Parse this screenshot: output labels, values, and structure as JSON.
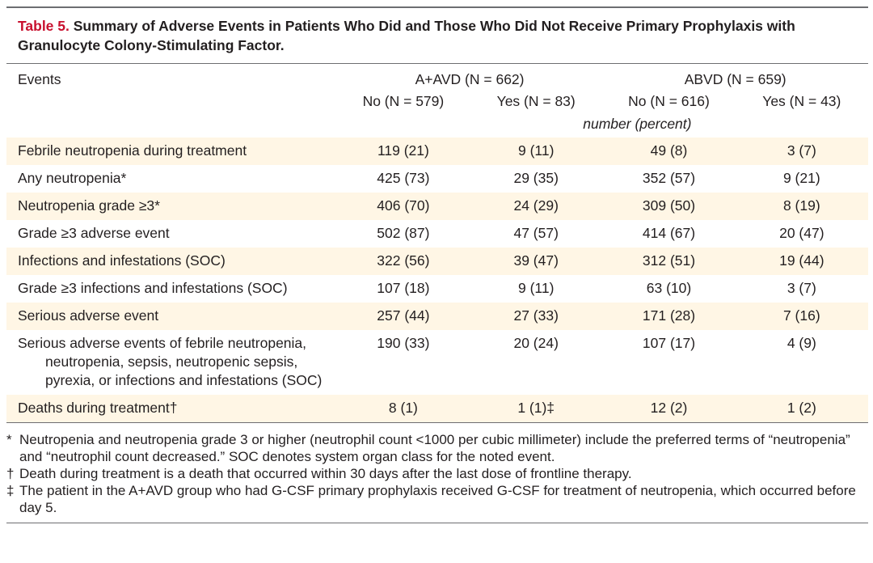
{
  "table": {
    "label": "Table 5.",
    "title": "Summary of Adverse Events in Patients Who Did and Those Who Did Not Receive Primary Prophylaxis with Granulocyte Colony-Stimulating Factor.",
    "events_header": "Events",
    "groups": [
      {
        "label": "A+AVD (N = 662)"
      },
      {
        "label": "ABVD (N = 659)"
      }
    ],
    "subheaders": [
      "No (N = 579)",
      "Yes (N = 83)",
      "No (N = 616)",
      "Yes (N = 43)"
    ],
    "units": "number (percent)",
    "rows": [
      {
        "event": "Febrile neutropenia during treatment",
        "values": [
          "119 (21)",
          "9 (11)",
          "49 (8)",
          "3 (7)"
        ]
      },
      {
        "event": "Any neutropenia*",
        "values": [
          "425 (73)",
          "29 (35)",
          "352 (57)",
          "9 (21)"
        ]
      },
      {
        "event": "Neutropenia grade ≥3*",
        "values": [
          "406 (70)",
          "24 (29)",
          "309 (50)",
          "8 (19)"
        ]
      },
      {
        "event": "Grade ≥3 adverse event",
        "values": [
          "502 (87)",
          "47 (57)",
          "414 (67)",
          "20 (47)"
        ]
      },
      {
        "event": "Infections and infestations (SOC)",
        "values": [
          "322 (56)",
          "39 (47)",
          "312 (51)",
          "19 (44)"
        ]
      },
      {
        "event": "Grade ≥3 infections and infestations (SOC)",
        "values": [
          "107 (18)",
          "9 (11)",
          "63 (10)",
          "3 (7)"
        ]
      },
      {
        "event": "Serious adverse event",
        "values": [
          "257 (44)",
          "27 (33)",
          "171 (28)",
          "7 (16)"
        ]
      },
      {
        "event": "Serious adverse events of febrile neutropenia, neutropenia, sepsis, neutropenic sepsis, pyrexia, or infections and infestations (SOC)",
        "values": [
          "190 (33)",
          "20 (24)",
          "107 (17)",
          "4 (9)"
        ]
      },
      {
        "event": "Deaths during treatment†",
        "values": [
          "8 (1)",
          "1 (1)‡",
          "12 (2)",
          "1 (2)"
        ]
      }
    ],
    "footnotes": [
      {
        "mark": "*",
        "text": "Neutropenia and neutropenia grade 3 or higher (neutrophil count <1000 per cubic millimeter) include the preferred terms of “neutropenia” and “neutrophil count decreased.” SOC denotes system organ class for the noted event."
      },
      {
        "mark": "†",
        "text": "Death during treatment is a death that occurred within 30 days after the last dose of frontline therapy."
      },
      {
        "mark": "‡",
        "text": "The patient in the A+AVD group who had G-CSF primary prophylaxis received G-CSF for treatment of neutropenia, which occurred before day 5."
      }
    ]
  },
  "colors": {
    "label_red": "#c8102e",
    "row_shading": "#fff6e5",
    "rule_gray": "#6d6e71"
  }
}
